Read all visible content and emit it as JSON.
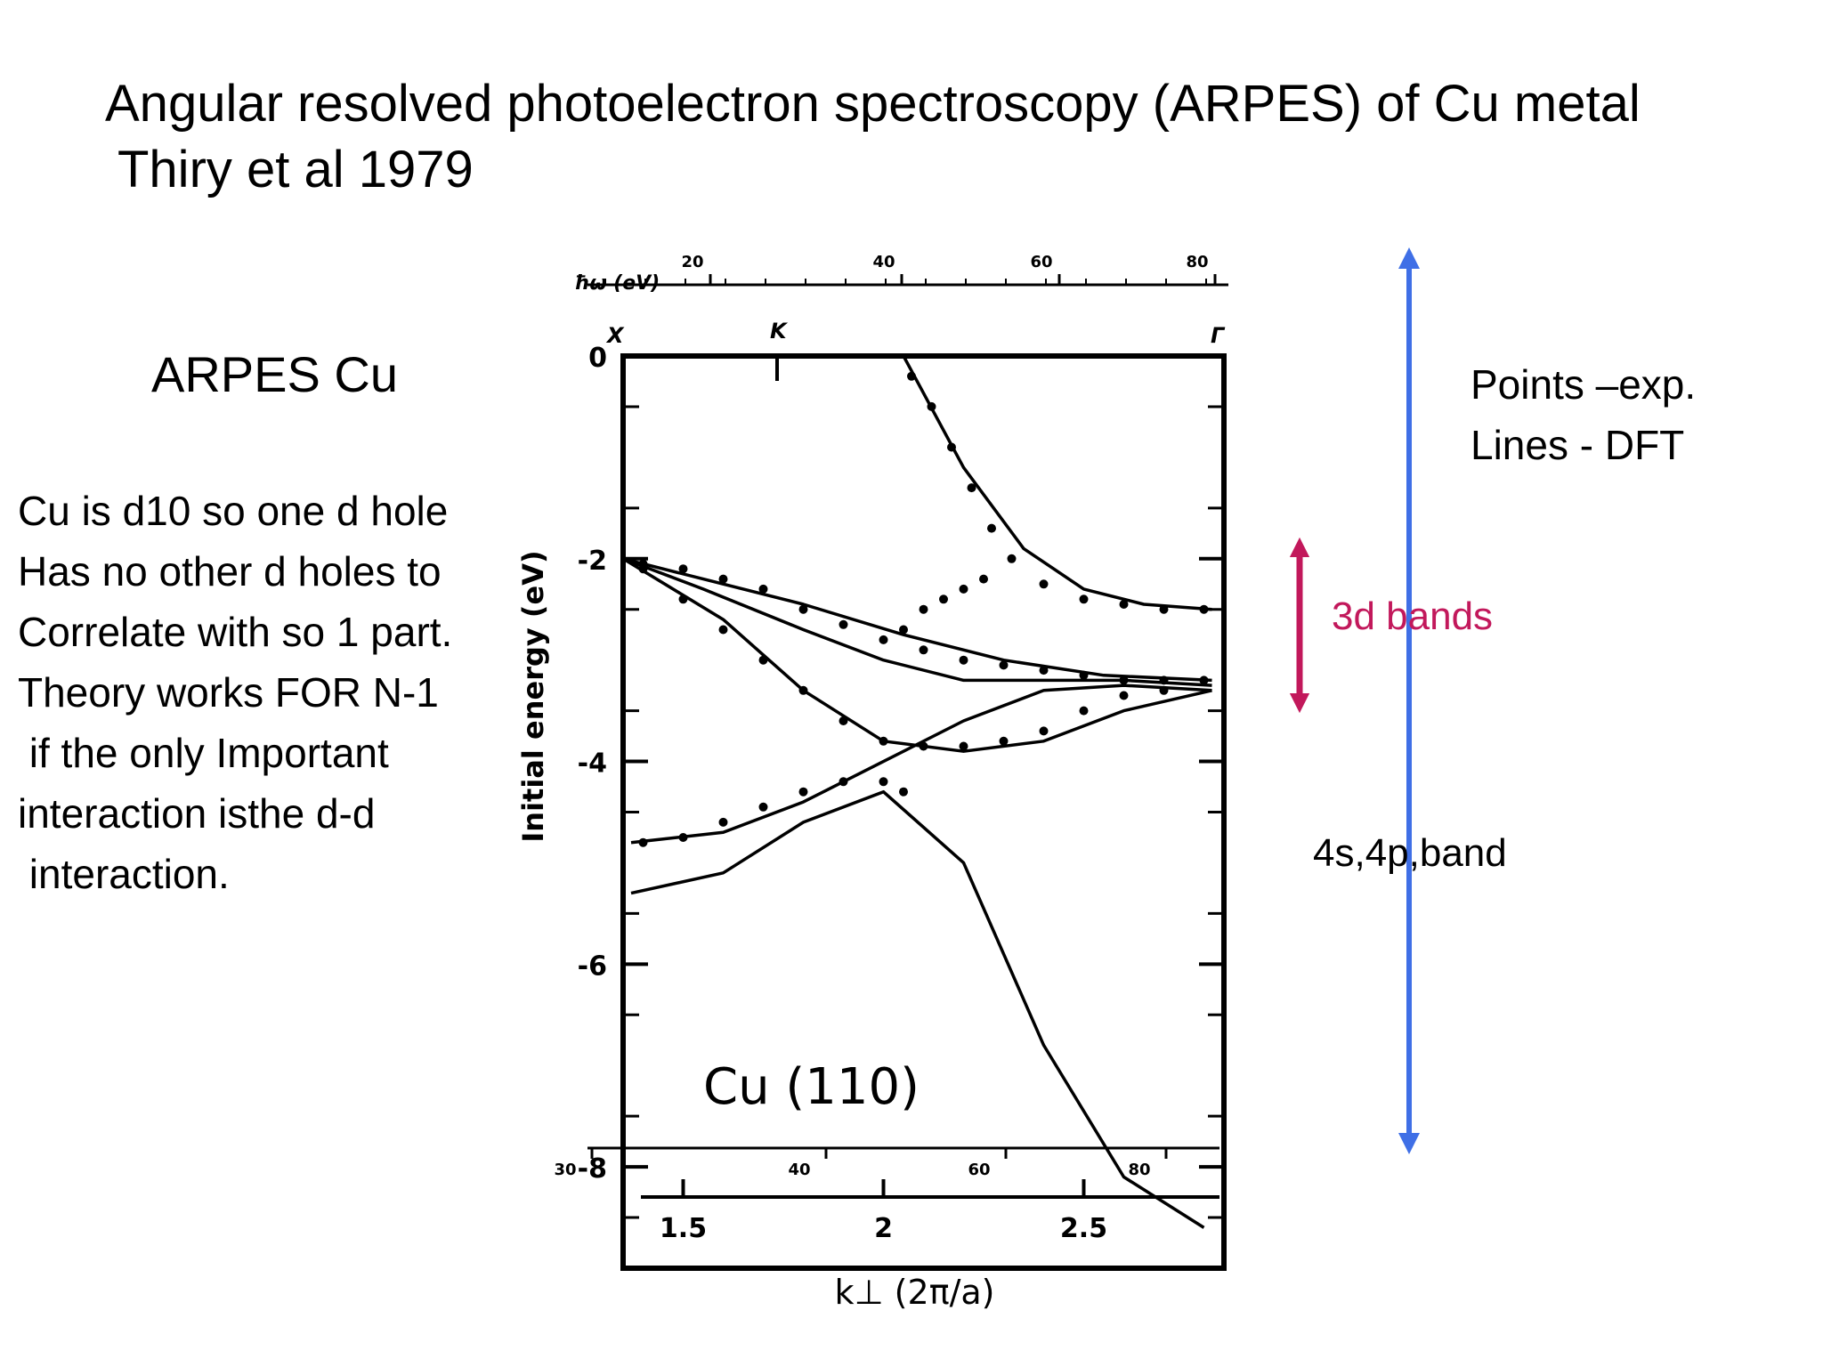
{
  "slide": {
    "title_line1": "Angular resolved photoelectron spectroscopy (ARPES) of Cu metal",
    "title_line2": "Thiry et al 1979",
    "subheading": "ARPES Cu",
    "body_lines": [
      "Cu is d10 so one d hole",
      "Has no other d holes to",
      "Correlate with so 1 part.",
      "Theory works FOR N-1",
      " if the only Important",
      "interaction isthe d-d",
      " interaction."
    ],
    "legend_lines": [
      "Points –exp.",
      "Lines - DFT"
    ],
    "annotation_3d": "3d bands",
    "annotation_4s4p": "4s,4p,band",
    "colors": {
      "blue_arrow": "#3f6fe6",
      "magenta_arrow": "#c2185b",
      "text": "#000000"
    }
  },
  "chart_data": {
    "type": "scatter",
    "label": "Cu (110)",
    "ylabel": "Initial energy (eV)",
    "xlabel": "k⊥ (2π/a)",
    "top_axis_label": "ħω (eV)",
    "ylim": [
      -9,
      0
    ],
    "yticks": [
      "0",
      "-2",
      "-4",
      "-6",
      "-8"
    ],
    "xlim": [
      1.35,
      2.85
    ],
    "xticks": [
      "1.5",
      "2",
      "2.5"
    ],
    "top_ticks": [
      "20",
      "40",
      "60",
      "80"
    ],
    "bottom_hw_ticks": [
      "30",
      "40",
      "60",
      "80"
    ],
    "symmetry_points": [
      "X",
      "K",
      "Γ"
    ],
    "series": [
      {
        "kind": "dft",
        "x": [
          2.05,
          2.2,
          2.35,
          2.5,
          2.65,
          2.82
        ],
        "y": [
          0,
          -1.1,
          -1.9,
          -2.3,
          -2.45,
          -2.5
        ]
      },
      {
        "kind": "dft",
        "x": [
          1.35,
          1.55,
          1.8,
          2.05,
          2.3,
          2.55,
          2.82
        ],
        "y": [
          -2.0,
          -2.2,
          -2.45,
          -2.75,
          -3.0,
          -3.15,
          -3.2
        ]
      },
      {
        "kind": "dft",
        "x": [
          1.35,
          1.55,
          1.8,
          2.0,
          2.2,
          2.4,
          2.6,
          2.82
        ],
        "y": [
          -2.0,
          -2.3,
          -2.7,
          -3.0,
          -3.2,
          -3.2,
          -3.2,
          -3.25
        ]
      },
      {
        "kind": "dft",
        "x": [
          1.35,
          1.6,
          1.8,
          2.0,
          2.2,
          2.4,
          2.6,
          2.82
        ],
        "y": [
          -2.0,
          -2.6,
          -3.3,
          -3.8,
          -3.9,
          -3.8,
          -3.5,
          -3.3
        ]
      },
      {
        "kind": "dft",
        "x": [
          1.37,
          1.6,
          1.8,
          2.0,
          2.2,
          2.4,
          2.6,
          2.82
        ],
        "y": [
          -4.8,
          -4.7,
          -4.4,
          -4.0,
          -3.6,
          -3.3,
          -3.25,
          -3.3
        ]
      },
      {
        "kind": "dft",
        "x": [
          1.37,
          1.6,
          1.8,
          2.0,
          2.2,
          2.4,
          2.6,
          2.8
        ],
        "y": [
          -5.3,
          -5.1,
          -4.6,
          -4.3,
          -5.0,
          -6.8,
          -8.1,
          -8.6
        ]
      },
      {
        "kind": "exp",
        "x": [
          2.07,
          2.12,
          2.17,
          2.22,
          2.27,
          2.32,
          2.4,
          2.5,
          2.6,
          2.7,
          2.8
        ],
        "y": [
          -0.2,
          -0.5,
          -0.9,
          -1.3,
          -1.7,
          -2.0,
          -2.25,
          -2.4,
          -2.45,
          -2.5,
          -2.5
        ]
      },
      {
        "kind": "exp",
        "x": [
          1.4,
          1.5,
          1.6,
          1.7,
          1.8,
          1.9,
          2.0,
          2.1,
          2.2,
          2.3,
          2.4,
          2.5,
          2.6,
          2.7,
          2.8
        ],
        "y": [
          -2.05,
          -2.1,
          -2.2,
          -2.3,
          -2.5,
          -2.65,
          -2.8,
          -2.9,
          -3.0,
          -3.05,
          -3.1,
          -3.15,
          -3.2,
          -3.2,
          -3.2
        ]
      },
      {
        "kind": "exp",
        "x": [
          1.4,
          1.5,
          1.6,
          1.7,
          1.8,
          1.9,
          2.0,
          2.1,
          2.2,
          2.3,
          2.4,
          2.5,
          2.6,
          2.7
        ],
        "y": [
          -2.1,
          -2.4,
          -2.7,
          -3.0,
          -3.3,
          -3.6,
          -3.8,
          -3.85,
          -3.85,
          -3.8,
          -3.7,
          -3.5,
          -3.35,
          -3.3
        ]
      },
      {
        "kind": "exp",
        "x": [
          1.4,
          1.5,
          1.6,
          1.7,
          1.8,
          1.9,
          2.0,
          2.05
        ],
        "y": [
          -4.8,
          -4.75,
          -4.6,
          -4.45,
          -4.3,
          -4.2,
          -4.2,
          -4.3
        ]
      },
      {
        "kind": "exp",
        "x": [
          2.05,
          2.1,
          2.15,
          2.2,
          2.25
        ],
        "y": [
          -2.7,
          -2.5,
          -2.4,
          -2.3,
          -2.2
        ]
      }
    ]
  }
}
